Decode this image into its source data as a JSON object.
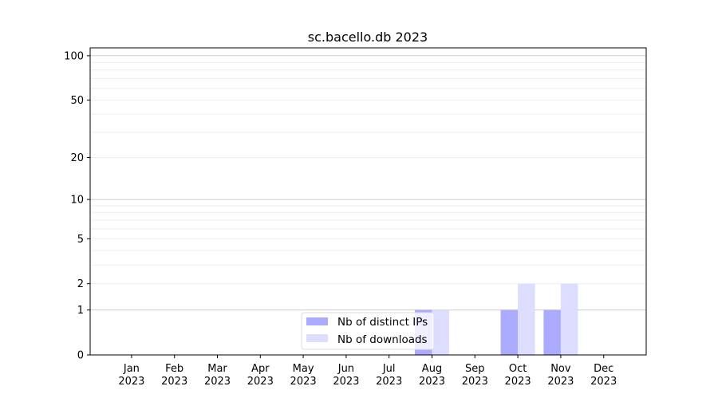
{
  "chart_data": {
    "type": "bar",
    "title": "sc.bacello.db 2023",
    "xlabel": "",
    "ylabel": "",
    "y_scale": "log(1+y)",
    "ylim": [
      0,
      113
    ],
    "y_ticks": [
      0,
      1,
      2,
      5,
      10,
      20,
      50,
      100
    ],
    "y_major_grid": [
      1,
      10,
      100
    ],
    "y_minor_grid": [
      2,
      3,
      4,
      5,
      6,
      7,
      8,
      9,
      20,
      30,
      40,
      50,
      60,
      70,
      80,
      90
    ],
    "grid": true,
    "legend_placement": "lower-center",
    "categories": [
      "Jan\n2023",
      "Feb\n2023",
      "Mar\n2023",
      "Apr\n2023",
      "May\n2023",
      "Jun\n2023",
      "Jul\n2023",
      "Aug\n2023",
      "Sep\n2023",
      "Oct\n2023",
      "Nov\n2023",
      "Dec\n2023"
    ],
    "series": [
      {
        "name": "Nb of distinct IPs",
        "color": "#aaaaff",
        "values": [
          0,
          0,
          0,
          0,
          0,
          0,
          0,
          1,
          0,
          1,
          1,
          0
        ]
      },
      {
        "name": "Nb of downloads",
        "color": "#ddddff",
        "values": [
          0,
          0,
          0,
          0,
          0,
          0,
          0,
          1,
          0,
          2,
          2,
          0
        ]
      }
    ]
  }
}
